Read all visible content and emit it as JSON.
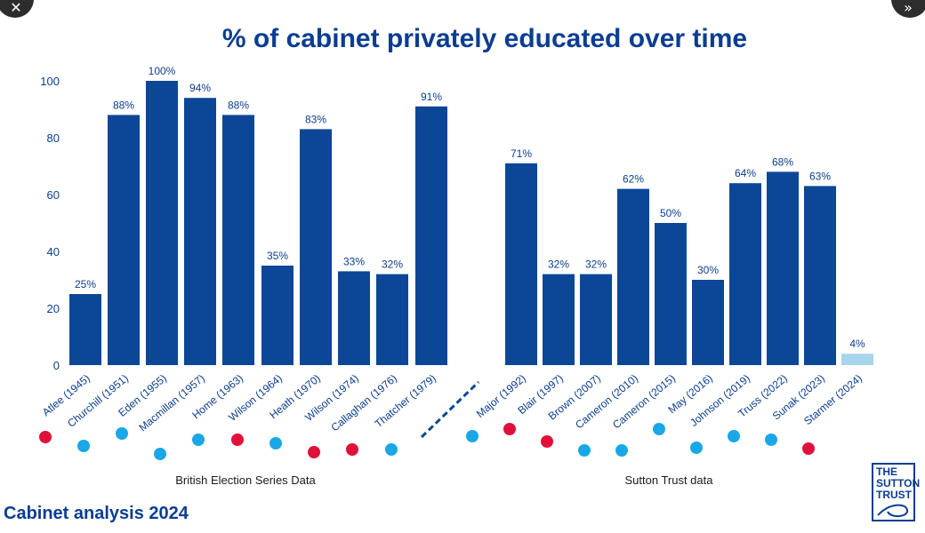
{
  "chart_data": {
    "type": "bar",
    "title": "% of cabinet privately educated over time",
    "ylim": [
      0,
      100
    ],
    "yticks": [
      0,
      20,
      40,
      60,
      80,
      100
    ],
    "grid": false,
    "categories": [
      "Atlee (1945)",
      "Churchill (1951)",
      "Eden (1955)",
      "Macmillan (1957)",
      "Home (1963)",
      "Wilson (1964)",
      "Heath (1970)",
      "Wilson (1974)",
      "Callaghan (1976)",
      "Thatcher (1979)",
      "Major (1992)",
      "Blair (1997)",
      "Brown (2007)",
      "Cameron (2010)",
      "Cameron (2015)",
      "May (2016)",
      "Johnson (2019)",
      "Truss (2022)",
      "Sunak (2023)",
      "Starmer (2024)"
    ],
    "values": [
      25,
      88,
      100,
      94,
      88,
      35,
      83,
      33,
      32,
      91,
      71,
      32,
      32,
      62,
      50,
      30,
      64,
      68,
      63,
      4
    ],
    "value_labels": [
      "25%",
      "88%",
      "100%",
      "94%",
      "88%",
      "35%",
      "83%",
      "33%",
      "32%",
      "91%",
      "71%",
      "32%",
      "32%",
      "62%",
      "50%",
      "30%",
      "64%",
      "68%",
      "63%",
      "4%"
    ],
    "party": [
      "labour",
      "conservative",
      "conservative",
      "conservative",
      "conservative",
      "labour",
      "conservative",
      "labour",
      "labour",
      "conservative",
      "conservative",
      "labour",
      "labour",
      "conservative",
      "conservative",
      "conservative",
      "conservative",
      "conservative",
      "conservative",
      "labour"
    ],
    "highlight": [
      false,
      false,
      false,
      false,
      false,
      false,
      false,
      false,
      false,
      false,
      false,
      false,
      false,
      false,
      false,
      false,
      false,
      false,
      false,
      true
    ],
    "groups": [
      {
        "label": "British Election Series Data",
        "from": 0,
        "to": 9
      },
      {
        "label": "Sutton Trust data",
        "from": 10,
        "to": 19
      }
    ],
    "colors": {
      "bar": "#0b4796",
      "bar_highlight": "#a9d4ee",
      "labour_dot": "#e0103a",
      "conservative_dot": "#1aa7e8",
      "text": "#0b3d91"
    }
  },
  "footer": {
    "caption": "Cabinet analysis 2024"
  },
  "logo": {
    "line1": "THE",
    "line2": "SUTTON",
    "line3": "TRUST"
  },
  "controls": {
    "close_icon": "✕",
    "next_icon": "»"
  }
}
